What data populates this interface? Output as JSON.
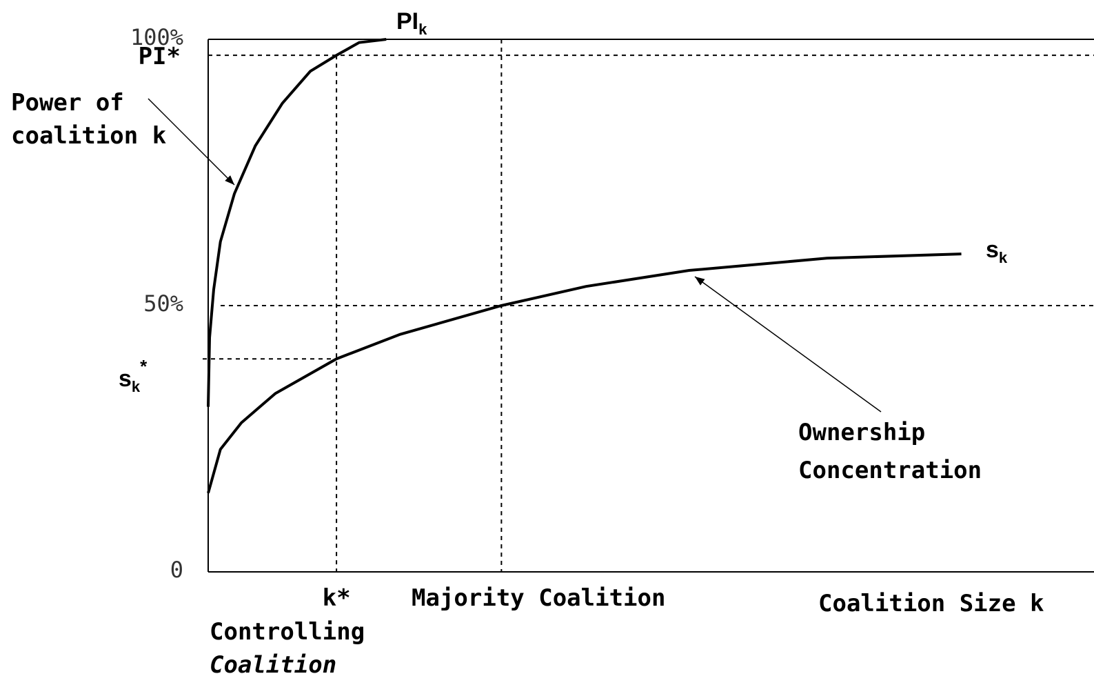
{
  "chart_data": {
    "type": "line",
    "xlabel": "Coalition Size k",
    "xlim": [
      0,
      100
    ],
    "ylim": [
      0,
      100
    ],
    "yticks": [
      0,
      {
        "value": 50,
        "label": "50%"
      },
      {
        "value": 100,
        "label": "100%"
      }
    ],
    "series": [
      {
        "name": "PI",
        "name_sub": "k",
        "color": "#000000",
        "x": [
          0,
          0.16,
          0.63,
          1.4,
          3.0,
          5.4,
          8.5,
          11.7,
          14.7,
          17.3,
          20.4
        ],
        "values": [
          31,
          44,
          53,
          62,
          71,
          80,
          88,
          94,
          97,
          99.4,
          100
        ]
      },
      {
        "name": "s",
        "name_sub": "k",
        "color": "#000000",
        "x": [
          0,
          1.4,
          3.8,
          7.7,
          14.7,
          22,
          33.6,
          43.3,
          55.1,
          70.9,
          86.3
        ],
        "values": [
          14.8,
          23,
          28,
          33.5,
          40,
          44.6,
          50,
          53.6,
          56.6,
          58.9,
          59.7
        ]
      }
    ],
    "hlines": [
      {
        "value": 97,
        "label": "PI*"
      },
      {
        "value": 50
      },
      {
        "value": 40,
        "label": "s",
        "label_sub": "k",
        "label_sup": "*"
      }
    ],
    "vlines": [
      {
        "value": 14.7,
        "label": "k*"
      },
      {
        "value": 33.6,
        "label": "Majority Coalition"
      }
    ],
    "annotations": {
      "power": [
        "Power of",
        "coalition k"
      ],
      "ownership": [
        "Ownership",
        "Concentration"
      ],
      "controlling": [
        "Controlling",
        "Coalition"
      ]
    }
  }
}
